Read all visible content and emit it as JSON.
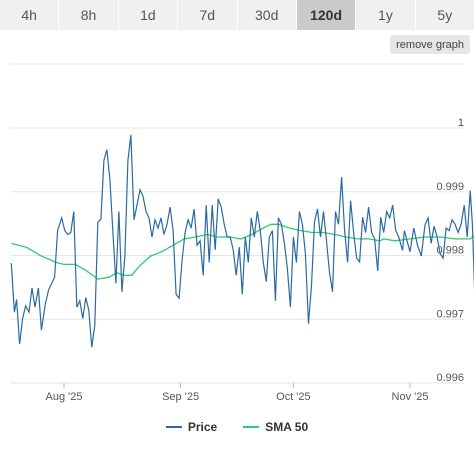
{
  "tabs": [
    {
      "label": "4h"
    },
    {
      "label": "8h"
    },
    {
      "label": "1d"
    },
    {
      "label": "7d"
    },
    {
      "label": "30d"
    },
    {
      "label": "120d",
      "active": true
    },
    {
      "label": "1y"
    },
    {
      "label": "5y"
    }
  ],
  "remove_label": "remove graph",
  "colors": {
    "price": "#2b6aa0",
    "sma": "#2ecc71"
  },
  "chart_data": {
    "type": "line",
    "x_ticks": [
      {
        "label": "Aug '25",
        "day": 0
      },
      {
        "label": "Sep '25",
        "day": 31
      },
      {
        "label": "Oct '25",
        "day": 61
      },
      {
        "label": "Nov '25",
        "day": 92
      }
    ],
    "y_ticks": [
      0.996,
      0.997,
      0.998,
      0.999,
      1
    ],
    "y_tick_labels": [
      "0.996",
      "0.997",
      "0.998",
      "0.999",
      "1"
    ],
    "ylim": [
      0.996,
      1.0
    ],
    "xlim_days": [
      -14,
      108
    ],
    "series": [
      {
        "name": "Price",
        "points": [
          [
            -14.0,
            0.99788
          ],
          [
            -13.2,
            0.99711
          ],
          [
            -12.6,
            0.99731
          ],
          [
            -11.8,
            0.99661
          ],
          [
            -11.0,
            0.99701
          ],
          [
            -10.2,
            0.99721
          ],
          [
            -9.3,
            0.99711
          ],
          [
            -8.5,
            0.99749
          ],
          [
            -7.7,
            0.99719
          ],
          [
            -6.8,
            0.99749
          ],
          [
            -6.0,
            0.99683
          ],
          [
            -5.0,
            0.99723
          ],
          [
            -4.1,
            0.99746
          ],
          [
            -2.5,
            0.99766
          ],
          [
            -1.7,
            0.99839
          ],
          [
            -0.6,
            0.99859
          ],
          [
            0.2,
            0.99839
          ],
          [
            1.0,
            0.99833
          ],
          [
            1.8,
            0.99836
          ],
          [
            2.6,
            0.99869
          ],
          [
            3.4,
            0.99719
          ],
          [
            4.2,
            0.99729
          ],
          [
            5.0,
            0.99701
          ],
          [
            5.8,
            0.99734
          ],
          [
            6.6,
            0.99714
          ],
          [
            7.4,
            0.99656
          ],
          [
            8.2,
            0.99691
          ],
          [
            9.0,
            0.99852
          ],
          [
            9.8,
            0.99857
          ],
          [
            10.6,
            0.99949
          ],
          [
            11.4,
            0.99966
          ],
          [
            12.2,
            0.99919
          ],
          [
            13.0,
            0.99836
          ],
          [
            13.8,
            0.99756
          ],
          [
            14.6,
            0.99869
          ],
          [
            15.4,
            0.99743
          ],
          [
            16.2,
            0.99799
          ],
          [
            17.0,
            0.99949
          ],
          [
            17.8,
            0.99989
          ],
          [
            18.6,
            0.99856
          ],
          [
            19.4,
            0.99879
          ],
          [
            20.2,
            0.99903
          ],
          [
            21.0,
            0.99893
          ],
          [
            21.8,
            0.99869
          ],
          [
            22.6,
            0.99859
          ],
          [
            23.4,
            0.99829
          ],
          [
            24.2,
            0.99856
          ],
          [
            25.0,
            0.99843
          ],
          [
            25.8,
            0.99859
          ],
          [
            26.6,
            0.99833
          ],
          [
            27.4,
            0.99849
          ],
          [
            28.2,
            0.99876
          ],
          [
            29.0,
            0.99839
          ],
          [
            29.8,
            0.99739
          ],
          [
            30.6,
            0.99733
          ],
          [
            31.4,
            0.99793
          ],
          [
            32.2,
            0.99836
          ],
          [
            33.0,
            0.99856
          ],
          [
            33.8,
            0.99843
          ],
          [
            34.6,
            0.99873
          ],
          [
            35.4,
            0.99816
          ],
          [
            36.2,
            0.99823
          ],
          [
            37.0,
            0.99769
          ],
          [
            37.8,
            0.99879
          ],
          [
            38.6,
            0.99789
          ],
          [
            39.4,
            0.99879
          ],
          [
            40.2,
            0.99809
          ],
          [
            41.0,
            0.99889
          ],
          [
            41.8,
            0.99876
          ],
          [
            42.6,
            0.99849
          ],
          [
            43.4,
            0.99829
          ],
          [
            44.2,
            0.99829
          ],
          [
            45.0,
            0.99809
          ],
          [
            45.8,
            0.99769
          ],
          [
            46.6,
            0.99813
          ],
          [
            47.4,
            0.99739
          ],
          [
            48.2,
            0.99829
          ],
          [
            49.0,
            0.99789
          ],
          [
            49.8,
            0.99859
          ],
          [
            50.6,
            0.99829
          ],
          [
            51.4,
            0.99869
          ],
          [
            52.2,
            0.99839
          ],
          [
            53.0,
            0.99789
          ],
          [
            53.8,
            0.99759
          ],
          [
            54.6,
            0.99829
          ],
          [
            55.4,
            0.99839
          ],
          [
            56.2,
            0.99729
          ],
          [
            57.0,
            0.99859
          ],
          [
            57.8,
            0.99849
          ],
          [
            58.6,
            0.99819
          ],
          [
            59.4,
            0.99779
          ],
          [
            60.2,
            0.99719
          ],
          [
            61.0,
            0.99829
          ],
          [
            61.8,
            0.99789
          ],
          [
            62.6,
            0.99869
          ],
          [
            63.4,
            0.99849
          ],
          [
            64.2,
            0.99803
          ],
          [
            65.0,
            0.99693
          ],
          [
            65.8,
            0.99753
          ],
          [
            66.6,
            0.99853
          ],
          [
            67.4,
            0.99873
          ],
          [
            68.2,
            0.99829
          ],
          [
            69.0,
            0.99869
          ],
          [
            69.8,
            0.99823
          ],
          [
            70.6,
            0.99773
          ],
          [
            71.4,
            0.99743
          ],
          [
            72.2,
            0.99869
          ],
          [
            73.0,
            0.99849
          ],
          [
            73.8,
            0.99923
          ],
          [
            74.6,
            0.99839
          ],
          [
            75.4,
            0.99789
          ],
          [
            76.2,
            0.99886
          ],
          [
            77.0,
            0.99836
          ],
          [
            77.8,
            0.99796
          ],
          [
            78.6,
            0.9979
          ],
          [
            79.4,
            0.9986
          ],
          [
            80.2,
            0.99836
          ],
          [
            81.0,
            0.99876
          ],
          [
            81.8,
            0.99836
          ],
          [
            82.6,
            0.99826
          ],
          [
            83.4,
            0.99776
          ],
          [
            84.2,
            0.9986
          ],
          [
            85.0,
            0.99836
          ]
        ]
      },
      {
        "name": "SMA 50",
        "points": [
          [
            -14.0,
            0.99819
          ],
          [
            -10.0,
            0.99813
          ],
          [
            -6.0,
            0.99799
          ],
          [
            -2.0,
            0.99789
          ],
          [
            0.0,
            0.99786
          ],
          [
            3.0,
            0.99786
          ],
          [
            6.0,
            0.99776
          ],
          [
            9.0,
            0.99763
          ],
          [
            12.0,
            0.99766
          ],
          [
            14.0,
            0.99773
          ],
          [
            16.0,
            0.99769
          ],
          [
            18.0,
            0.99769
          ],
          [
            20.0,
            0.99783
          ],
          [
            23.0,
            0.99799
          ],
          [
            26.0,
            0.99806
          ],
          [
            29.0,
            0.99816
          ],
          [
            32.0,
            0.99826
          ],
          [
            35.0,
            0.99829
          ],
          [
            38.0,
            0.99833
          ],
          [
            41.0,
            0.99829
          ],
          [
            44.0,
            0.99829
          ],
          [
            47.0,
            0.99826
          ],
          [
            50.0,
            0.99833
          ],
          [
            53.0,
            0.99843
          ],
          [
            55.0,
            0.99849
          ],
          [
            57.0,
            0.99849
          ],
          [
            60.0,
            0.99843
          ],
          [
            63.0,
            0.99839
          ],
          [
            66.0,
            0.99836
          ],
          [
            69.0,
            0.99836
          ],
          [
            72.0,
            0.99833
          ],
          [
            75.0,
            0.99829
          ],
          [
            78.0,
            0.99826
          ],
          [
            81.0,
            0.99826
          ],
          [
            84.0,
            0.99823
          ],
          [
            85.0,
            0.99826
          ]
        ]
      }
    ],
    "price_tail": [
      [
        85.8,
        0.99869
      ],
      [
        86.6,
        0.99859
      ],
      [
        87.4,
        0.99879
      ],
      [
        88.2,
        0.99839
      ],
      [
        89.0,
        0.99829
      ],
      [
        90.0,
        0.99808
      ],
      [
        90.5,
        0.99839
      ],
      [
        91.2,
        0.99823
      ],
      [
        92.0,
        0.99806
      ],
      [
        93.0,
        0.99843
      ],
      [
        94.0,
        0.99816
      ],
      [
        95.0,
        0.99799
      ],
      [
        96.0,
        0.99848
      ],
      [
        96.8,
        0.99859
      ],
      [
        97.6,
        0.99819
      ],
      [
        98.4,
        0.99846
      ],
      [
        99.2,
        0.99829
      ],
      [
        100.0,
        0.99803
      ],
      [
        100.8,
        0.99796
      ],
      [
        101.6,
        0.99843
      ],
      [
        102.4,
        0.99839
      ],
      [
        103.2,
        0.99856
      ],
      [
        104.0,
        0.99849
      ],
      [
        104.8,
        0.99836
      ],
      [
        105.6,
        0.99849
      ],
      [
        106.4,
        0.99879
      ],
      [
        107.2,
        0.99829
      ],
      [
        108.0,
        0.99902
      ],
      [
        108.6,
        0.99849
      ],
      [
        109.5,
        0.99689
      ]
    ],
    "sma_tail": [
      [
        88.0,
        0.99823
      ],
      [
        92.0,
        0.99826
      ],
      [
        96.0,
        0.99829
      ],
      [
        100.0,
        0.99829
      ],
      [
        104.0,
        0.99826
      ],
      [
        108.0,
        0.99826
      ],
      [
        109.5,
        0.99833
      ]
    ],
    "grid": true,
    "legend_position": "bottom"
  }
}
